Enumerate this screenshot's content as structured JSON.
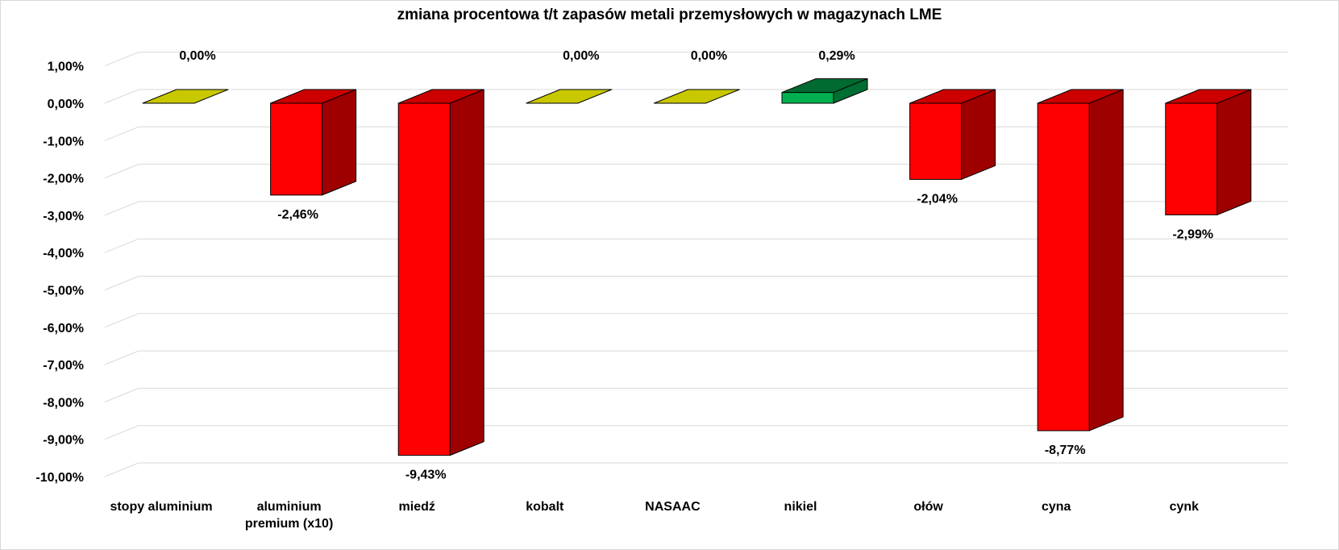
{
  "chart_data": {
    "type": "bar",
    "title": "zmiana procentowa t/t zapasów metali przemysłowych w magazynach LME",
    "xlabel": "",
    "ylabel": "",
    "style": "3d-column",
    "grid": true,
    "legend": "none",
    "ylim": [
      -10,
      1
    ],
    "yticks": [
      1,
      0,
      -1,
      -2,
      -3,
      -4,
      -5,
      -6,
      -7,
      -8,
      -9,
      -10
    ],
    "ytick_labels": [
      "1,00%",
      "0,00%",
      "-1,00%",
      "-2,00%",
      "-3,00%",
      "-4,00%",
      "-5,00%",
      "-6,00%",
      "-7,00%",
      "-8,00%",
      "-9,00%",
      "-10,00%"
    ],
    "categories": [
      [
        "stopy aluminium"
      ],
      [
        "aluminium",
        "premium (x10)"
      ],
      [
        "miedź"
      ],
      [
        "kobalt"
      ],
      [
        "NASAAC"
      ],
      [
        "nikiel"
      ],
      [
        "ołów"
      ],
      [
        "cyna"
      ],
      [
        "cynk"
      ]
    ],
    "values": [
      0.0,
      -2.46,
      -9.43,
      0.0,
      0.0,
      0.29,
      -2.04,
      -8.77,
      -2.99
    ],
    "value_labels": [
      "0,00%",
      "-2,46%",
      "-9,43%",
      "0,00%",
      "0,00%",
      "0,29%",
      "-2,04%",
      "-8,77%",
      "-2,99%"
    ],
    "colors": {
      "negative": "#ff0000",
      "positive": "#00b050",
      "zero": "#c8c800",
      "gridline": "#d9d9d9"
    }
  }
}
